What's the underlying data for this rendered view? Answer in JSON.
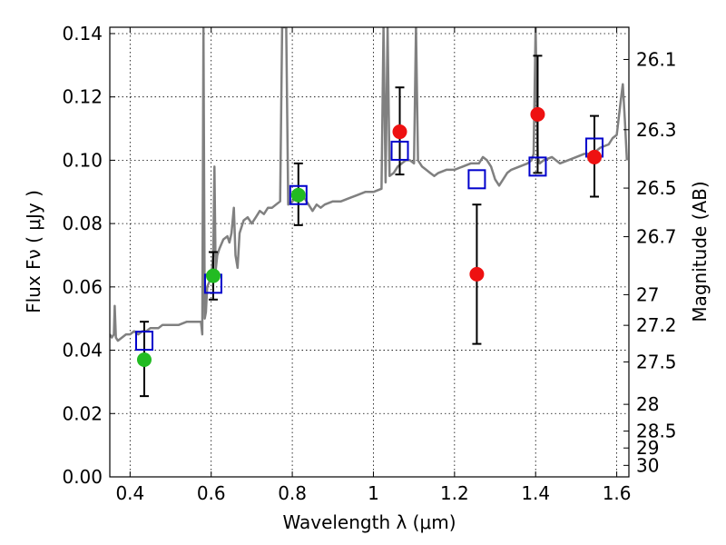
{
  "chart_data": {
    "type": "scatter",
    "xlabel": "Wavelength  λ (μm)",
    "ylabel": "Flux  Fν  ( μJy )",
    "y2label": "Magnitude (AB)",
    "xlim": [
      0.35,
      1.63
    ],
    "ylim": [
      0.0,
      0.142
    ],
    "x_ticks": [
      {
        "value": 0.4,
        "label": "0.4"
      },
      {
        "value": 0.6,
        "label": "0.6"
      },
      {
        "value": 0.8,
        "label": "0.8"
      },
      {
        "value": 1.0,
        "label": "1"
      },
      {
        "value": 1.2,
        "label": "1.2"
      },
      {
        "value": 1.4,
        "label": "1.4"
      },
      {
        "value": 1.6,
        "label": "1.6"
      }
    ],
    "y_ticks": [
      {
        "value": 0.0,
        "label": "0.00"
      },
      {
        "value": 0.02,
        "label": "0.02"
      },
      {
        "value": 0.04,
        "label": "0.04"
      },
      {
        "value": 0.06,
        "label": "0.06"
      },
      {
        "value": 0.08,
        "label": "0.08"
      },
      {
        "value": 0.1,
        "label": "0.10"
      },
      {
        "value": 0.12,
        "label": "0.12"
      },
      {
        "value": 0.14,
        "label": "0.14"
      }
    ],
    "y2_ticks": [
      {
        "value": 26.1,
        "label": "26.1"
      },
      {
        "value": 26.3,
        "label": "26.3"
      },
      {
        "value": 26.5,
        "label": "26.5"
      },
      {
        "value": 26.7,
        "label": "26.7"
      },
      {
        "value": 27.0,
        "label": "27"
      },
      {
        "value": 27.2,
        "label": "27.2"
      },
      {
        "value": 27.5,
        "label": "27.5"
      },
      {
        "value": 28.0,
        "label": "28"
      },
      {
        "value": 28.5,
        "label": "28.5"
      },
      {
        "value": 29.0,
        "label": "29"
      },
      {
        "value": 30.0,
        "label": "30"
      }
    ],
    "grid": true,
    "colors": {
      "model": "#808080",
      "model_points": "#0000cc",
      "optical_obs": "#22bb22",
      "nir_obs": "#ee1111",
      "error_bar": "#000000"
    },
    "model_spectrum": [
      [
        0.35,
        0.045
      ],
      [
        0.355,
        0.044
      ],
      [
        0.36,
        0.045
      ],
      [
        0.362,
        0.054
      ],
      [
        0.365,
        0.044
      ],
      [
        0.37,
        0.043
      ],
      [
        0.38,
        0.044
      ],
      [
        0.39,
        0.045
      ],
      [
        0.4,
        0.045
      ],
      [
        0.41,
        0.046
      ],
      [
        0.42,
        0.045
      ],
      [
        0.43,
        0.046
      ],
      [
        0.44,
        0.046
      ],
      [
        0.45,
        0.047
      ],
      [
        0.46,
        0.047
      ],
      [
        0.47,
        0.047
      ],
      [
        0.48,
        0.048
      ],
      [
        0.5,
        0.048
      ],
      [
        0.52,
        0.048
      ],
      [
        0.54,
        0.049
      ],
      [
        0.56,
        0.049
      ],
      [
        0.575,
        0.049
      ],
      [
        0.578,
        0.045
      ],
      [
        0.581,
        0.142
      ],
      [
        0.584,
        0.05
      ],
      [
        0.587,
        0.052
      ],
      [
        0.59,
        0.06
      ],
      [
        0.6,
        0.063
      ],
      [
        0.605,
        0.07
      ],
      [
        0.608,
        0.098
      ],
      [
        0.611,
        0.065
      ],
      [
        0.615,
        0.07
      ],
      [
        0.62,
        0.072
      ],
      [
        0.63,
        0.075
      ],
      [
        0.64,
        0.076
      ],
      [
        0.645,
        0.074
      ],
      [
        0.65,
        0.077
      ],
      [
        0.656,
        0.085
      ],
      [
        0.66,
        0.07
      ],
      [
        0.665,
        0.066
      ],
      [
        0.67,
        0.077
      ],
      [
        0.68,
        0.081
      ],
      [
        0.69,
        0.082
      ],
      [
        0.7,
        0.08
      ],
      [
        0.71,
        0.082
      ],
      [
        0.72,
        0.084
      ],
      [
        0.73,
        0.083
      ],
      [
        0.74,
        0.085
      ],
      [
        0.75,
        0.085
      ],
      [
        0.76,
        0.086
      ],
      [
        0.77,
        0.087
      ],
      [
        0.775,
        0.142
      ],
      [
        0.785,
        0.142
      ],
      [
        0.79,
        0.086
      ],
      [
        0.8,
        0.087
      ],
      [
        0.81,
        0.088
      ],
      [
        0.82,
        0.09
      ],
      [
        0.83,
        0.088
      ],
      [
        0.84,
        0.086
      ],
      [
        0.85,
        0.084
      ],
      [
        0.86,
        0.086
      ],
      [
        0.87,
        0.085
      ],
      [
        0.88,
        0.086
      ],
      [
        0.9,
        0.087
      ],
      [
        0.92,
        0.087
      ],
      [
        0.94,
        0.088
      ],
      [
        0.96,
        0.089
      ],
      [
        0.98,
        0.09
      ],
      [
        1.0,
        0.09
      ],
      [
        1.02,
        0.091
      ],
      [
        1.025,
        0.142
      ],
      [
        1.03,
        0.093
      ],
      [
        1.035,
        0.142
      ],
      [
        1.04,
        0.095
      ],
      [
        1.05,
        0.096
      ],
      [
        1.06,
        0.098
      ],
      [
        1.07,
        0.099
      ],
      [
        1.08,
        0.1
      ],
      [
        1.09,
        0.1
      ],
      [
        1.1,
        0.099
      ],
      [
        1.105,
        0.142
      ],
      [
        1.11,
        0.1
      ],
      [
        1.12,
        0.098
      ],
      [
        1.13,
        0.097
      ],
      [
        1.14,
        0.096
      ],
      [
        1.15,
        0.095
      ],
      [
        1.16,
        0.096
      ],
      [
        1.18,
        0.097
      ],
      [
        1.2,
        0.097
      ],
      [
        1.22,
        0.098
      ],
      [
        1.24,
        0.099
      ],
      [
        1.26,
        0.099
      ],
      [
        1.27,
        0.101
      ],
      [
        1.28,
        0.1
      ],
      [
        1.29,
        0.098
      ],
      [
        1.3,
        0.094
      ],
      [
        1.31,
        0.092
      ],
      [
        1.32,
        0.094
      ],
      [
        1.33,
        0.096
      ],
      [
        1.34,
        0.097
      ],
      [
        1.36,
        0.098
      ],
      [
        1.38,
        0.099
      ],
      [
        1.39,
        0.1
      ],
      [
        1.395,
        0.102
      ],
      [
        1.4,
        0.142
      ],
      [
        1.405,
        0.101
      ],
      [
        1.41,
        0.099
      ],
      [
        1.42,
        0.1
      ],
      [
        1.44,
        0.101
      ],
      [
        1.46,
        0.099
      ],
      [
        1.48,
        0.1
      ],
      [
        1.5,
        0.101
      ],
      [
        1.52,
        0.102
      ],
      [
        1.54,
        0.102
      ],
      [
        1.56,
        0.104
      ],
      [
        1.58,
        0.105
      ],
      [
        1.59,
        0.107
      ],
      [
        1.6,
        0.108
      ],
      [
        1.61,
        0.119
      ],
      [
        1.615,
        0.124
      ],
      [
        1.62,
        0.113
      ],
      [
        1.625,
        0.1
      ]
    ],
    "model_points": [
      {
        "x": 0.435,
        "y": 0.043
      },
      {
        "x": 0.605,
        "y": 0.061
      },
      {
        "x": 0.815,
        "y": 0.089
      },
      {
        "x": 1.065,
        "y": 0.103
      },
      {
        "x": 1.255,
        "y": 0.094
      },
      {
        "x": 1.405,
        "y": 0.098
      },
      {
        "x": 1.545,
        "y": 0.104
      }
    ],
    "observations": [
      {
        "group": "optical_obs",
        "x": 0.435,
        "y": 0.037,
        "ylow": 0.0255,
        "yhigh": 0.049
      },
      {
        "group": "optical_obs",
        "x": 0.605,
        "y": 0.0635,
        "ylow": 0.056,
        "yhigh": 0.071
      },
      {
        "group": "optical_obs",
        "x": 0.815,
        "y": 0.089,
        "ylow": 0.0795,
        "yhigh": 0.099
      },
      {
        "group": "nir_obs",
        "x": 1.065,
        "y": 0.109,
        "ylow": 0.0955,
        "yhigh": 0.123
      },
      {
        "group": "nir_obs",
        "x": 1.255,
        "y": 0.064,
        "ylow": 0.042,
        "yhigh": 0.086
      },
      {
        "group": "nir_obs",
        "x": 1.405,
        "y": 0.1145,
        "ylow": 0.096,
        "yhigh": 0.133
      },
      {
        "group": "nir_obs",
        "x": 1.545,
        "y": 0.101,
        "ylow": 0.0885,
        "yhigh": 0.114
      }
    ]
  }
}
